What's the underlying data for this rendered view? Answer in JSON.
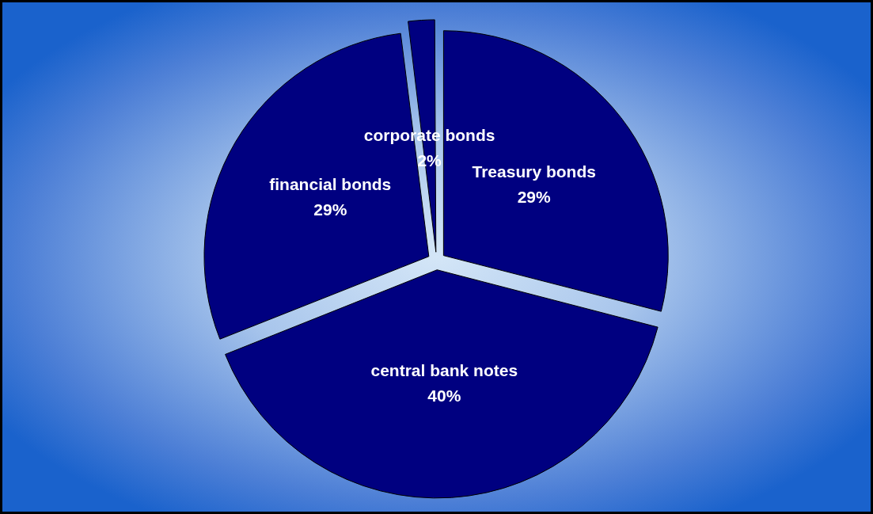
{
  "chart_data": {
    "type": "pie",
    "categories": [
      "Treasury bonds",
      "central bank notes",
      "financial bonds",
      "corporate bonds"
    ],
    "values": [
      29,
      40,
      29,
      2
    ],
    "colors": [
      "#000080",
      "#000080",
      "#000080",
      "#000080"
    ],
    "value_labels": [
      "29%",
      "40%",
      "29%",
      "2%"
    ],
    "legend": false
  }
}
